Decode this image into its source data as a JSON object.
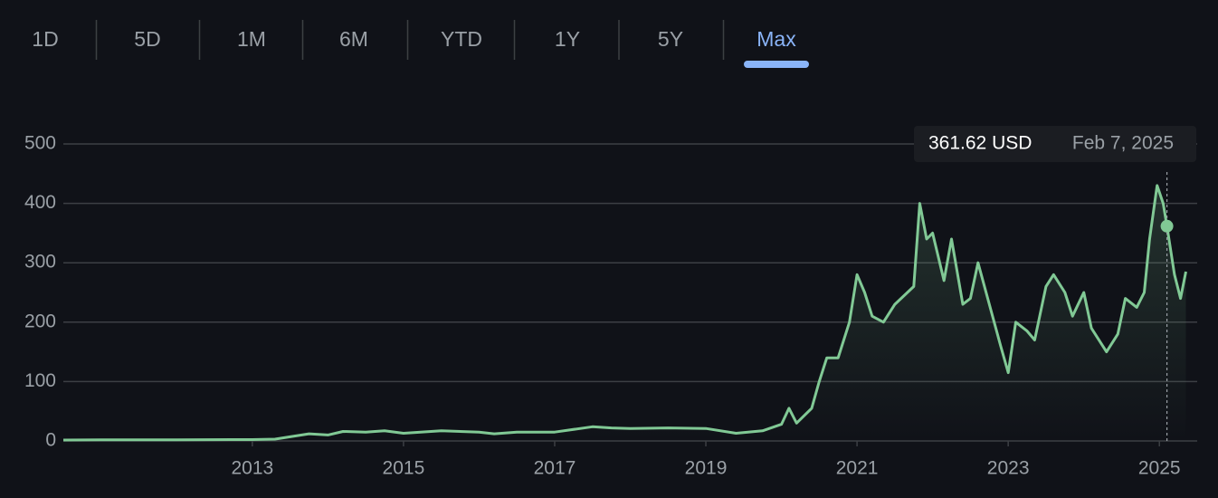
{
  "tabs": [
    "1D",
    "5D",
    "1M",
    "6M",
    "YTD",
    "1Y",
    "5Y",
    "Max"
  ],
  "selected_tab": 7,
  "chart_data": {
    "type": "line",
    "x": [
      2010.5,
      2011,
      2012,
      2013,
      2013.3,
      2013.5,
      2013.75,
      2014,
      2014.2,
      2014.5,
      2014.75,
      2015,
      2015.5,
      2016,
      2016.2,
      2016.5,
      2017,
      2017.5,
      2017.75,
      2018,
      2018.5,
      2019,
      2019.4,
      2019.75,
      2020,
      2020.1,
      2020.2,
      2020.4,
      2020.5,
      2020.6,
      2020.75,
      2020.9,
      2021,
      2021.1,
      2021.2,
      2021.35,
      2021.5,
      2021.75,
      2021.83,
      2021.92,
      2022,
      2022.15,
      2022.25,
      2022.4,
      2022.5,
      2022.6,
      2022.75,
      2022.9,
      2023,
      2023.1,
      2023.25,
      2023.35,
      2023.5,
      2023.6,
      2023.75,
      2023.85,
      2024,
      2024.1,
      2024.3,
      2024.45,
      2024.55,
      2024.7,
      2024.8,
      2024.87,
      2024.97,
      2025.05,
      2025.1,
      2025.2,
      2025.28,
      2025.35
    ],
    "series": [
      {
        "color": "#81c995",
        "values": [
          1.5,
          1.8,
          2,
          2.3,
          3,
          7,
          12,
          10,
          16,
          15,
          17,
          13,
          17,
          15,
          12,
          15,
          15,
          24,
          22,
          21,
          22,
          21,
          13,
          17,
          28,
          55,
          30,
          55,
          100,
          140,
          140,
          200,
          280,
          250,
          210,
          200,
          230,
          260,
          400,
          340,
          350,
          270,
          340,
          230,
          240,
          300,
          230,
          160,
          115,
          200,
          185,
          170,
          260,
          280,
          250,
          210,
          250,
          190,
          150,
          180,
          240,
          225,
          250,
          340,
          430,
          400,
          361.62,
          280,
          240,
          285
        ]
      }
    ],
    "xlim": [
      2010.5,
      2025.5
    ],
    "ylim": [
      0,
      500
    ],
    "xticks": [
      2013,
      2015,
      2017,
      2019,
      2021,
      2023,
      2025
    ],
    "yticks": [
      0,
      100,
      200,
      300,
      400,
      500
    ],
    "grid": true,
    "tooltip": {
      "x": 2025.1,
      "value": 361.62,
      "value_label": "361.62 USD",
      "date": "Feb 7, 2025"
    }
  }
}
